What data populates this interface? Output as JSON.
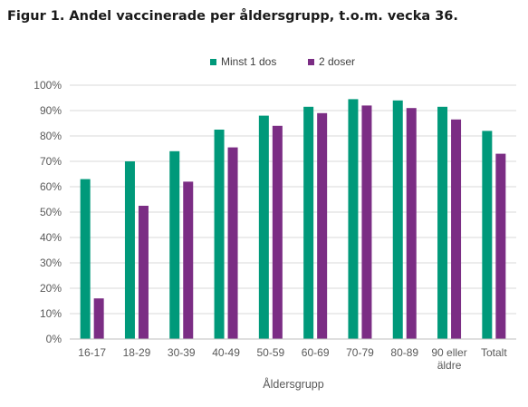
{
  "figure": {
    "title": "Figur 1. Andel vaccinerade per åldersgrupp, t.o.m. vecka 36."
  },
  "chart_data": {
    "type": "bar",
    "title": "Figur 1. Andel vaccinerade per åldersgrupp, t.o.m. vecka 36.",
    "xlabel": "Åldersgrupp",
    "ylabel": "",
    "ylim": [
      0,
      100
    ],
    "yticks": [
      "0%",
      "10%",
      "20%",
      "30%",
      "40%",
      "50%",
      "60%",
      "70%",
      "80%",
      "90%",
      "100%"
    ],
    "grid": true,
    "legend_position": "top",
    "categories": [
      [
        "16-17"
      ],
      [
        "18-29"
      ],
      [
        "30-39"
      ],
      [
        "40-49"
      ],
      [
        "50-59"
      ],
      [
        "60-69"
      ],
      [
        "70-79"
      ],
      [
        "80-89"
      ],
      [
        "90 eller",
        "äldre"
      ],
      [
        "Totalt"
      ]
    ],
    "series": [
      {
        "name": "Minst 1 dos",
        "color": "#00997a",
        "values": [
          63,
          70,
          74,
          82.5,
          88,
          91.5,
          94.5,
          94,
          91.5,
          82
        ]
      },
      {
        "name": "2 doser",
        "color": "#7b2d84",
        "values": [
          16,
          52.5,
          62,
          75.5,
          84,
          89,
          92,
          91,
          86.5,
          73
        ]
      }
    ]
  }
}
